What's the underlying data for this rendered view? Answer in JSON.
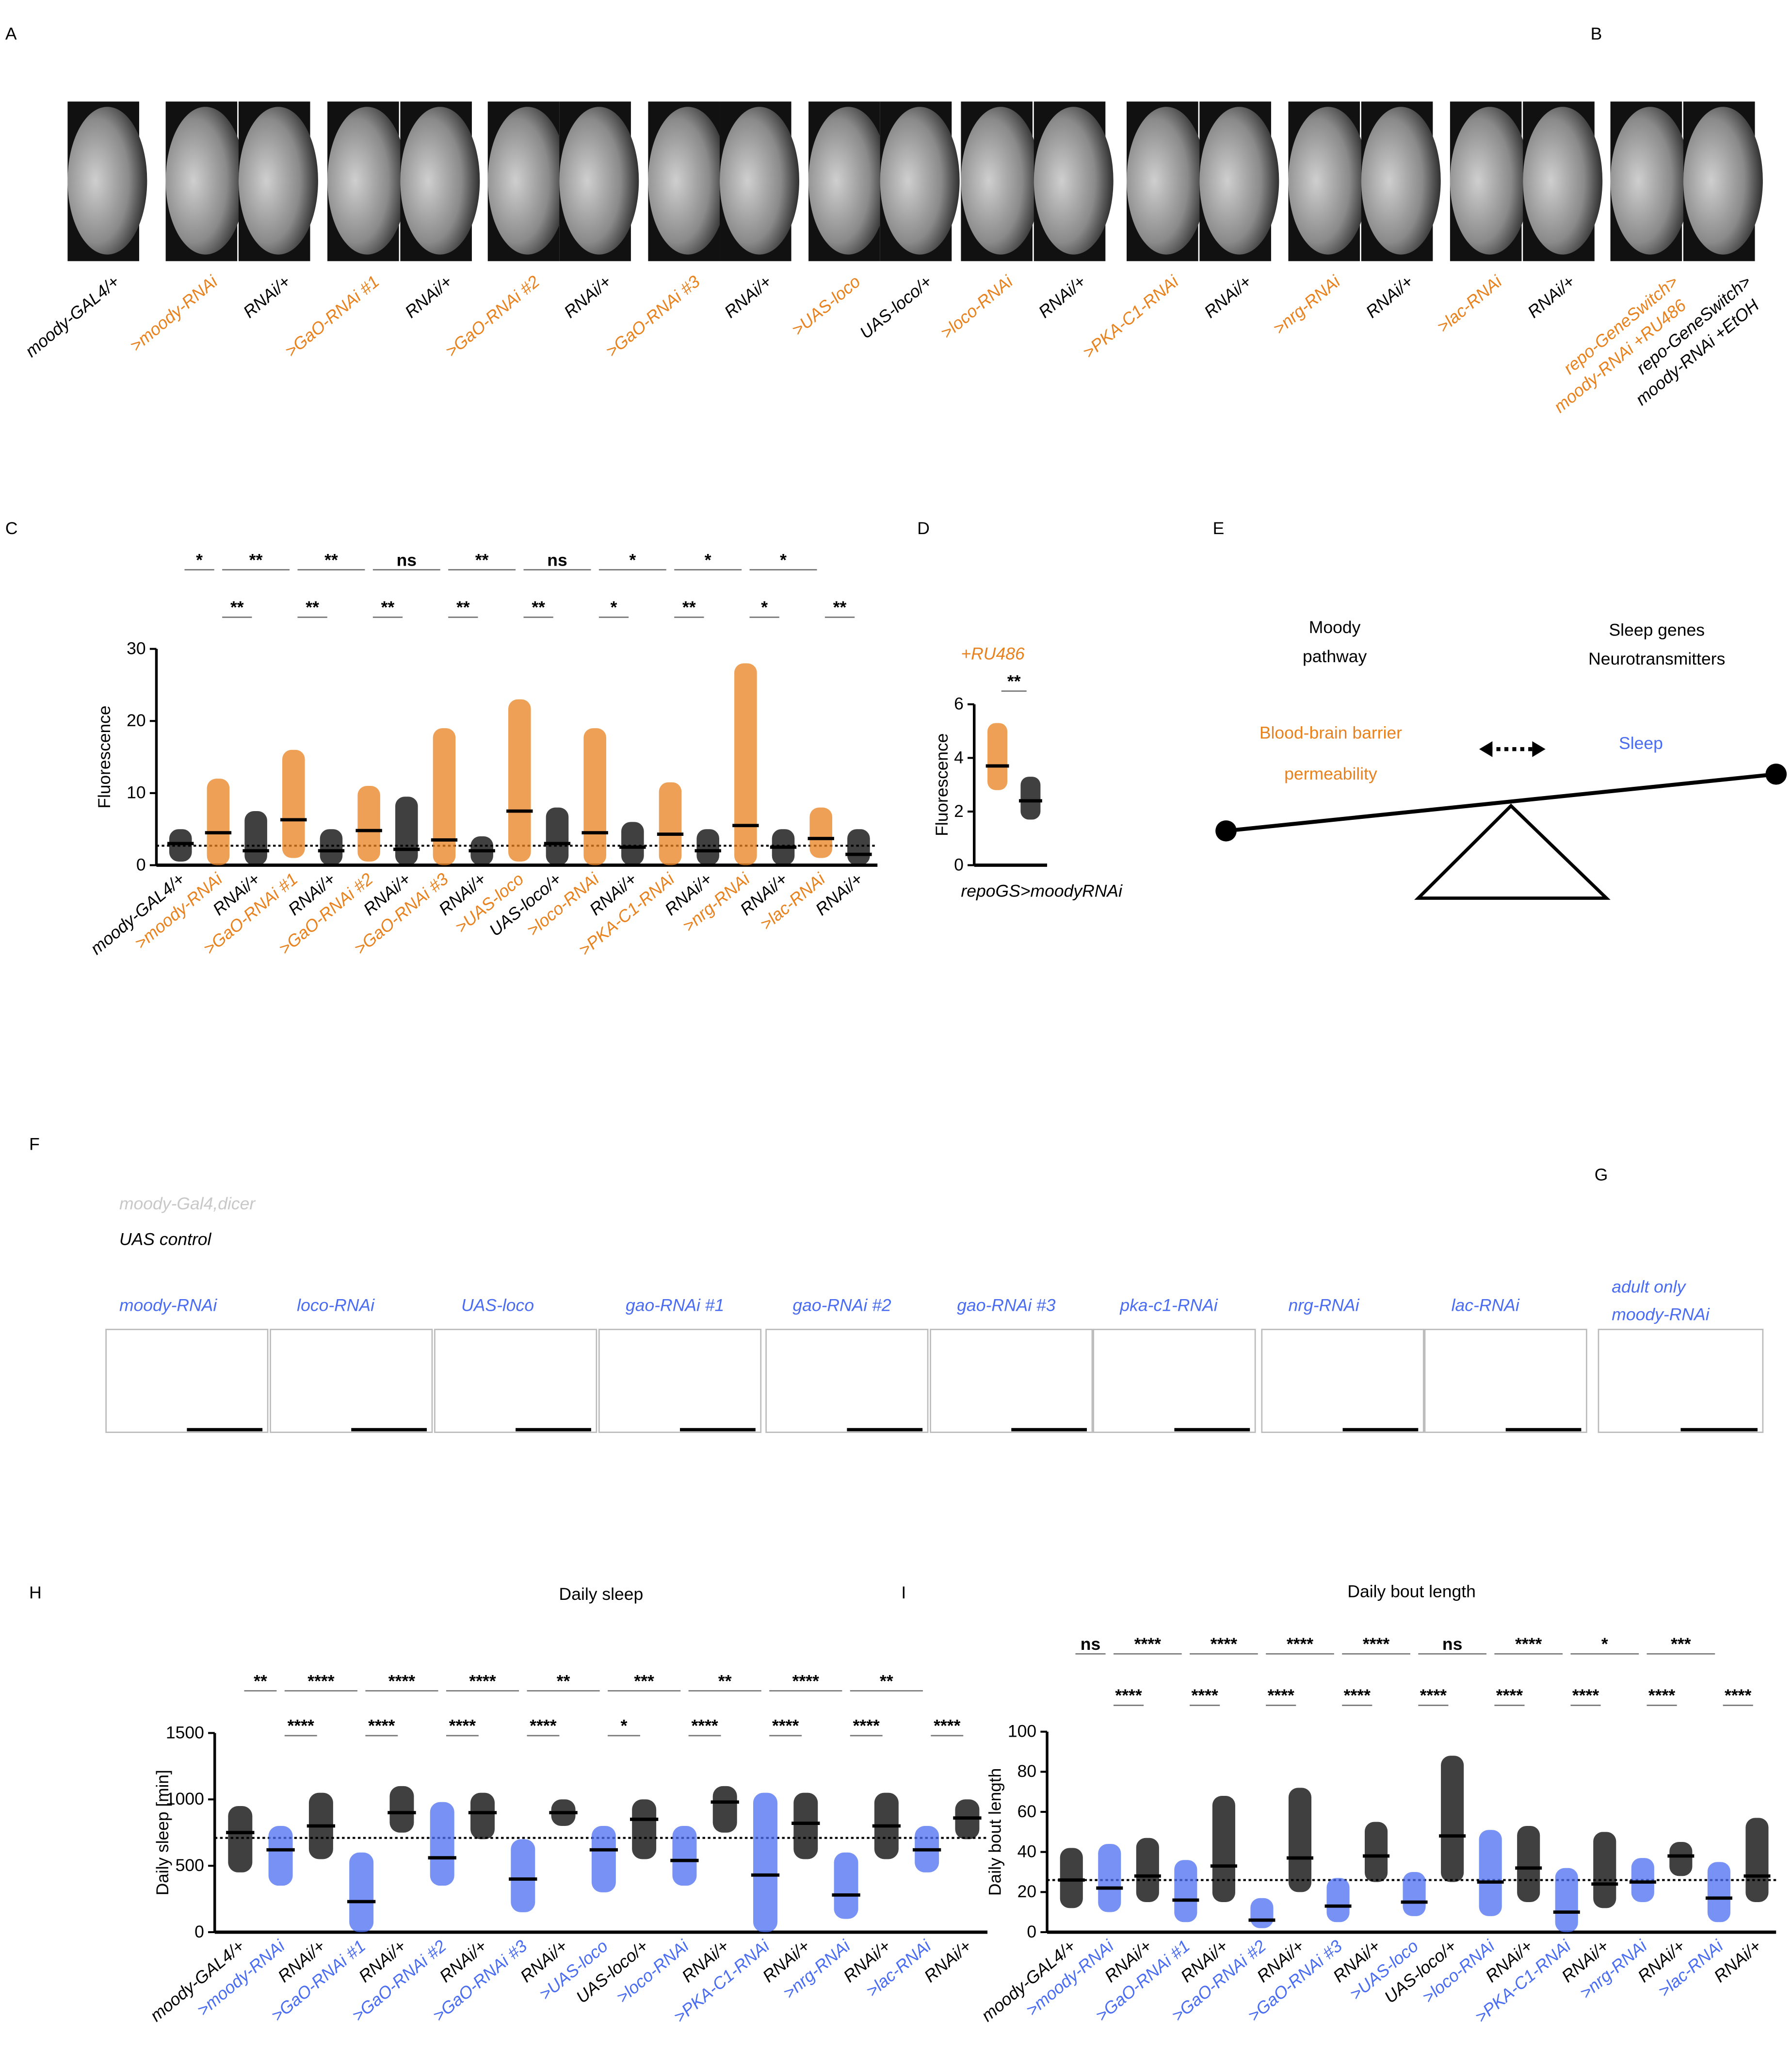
{
  "panel_labels": [
    "A",
    "B",
    "C",
    "D",
    "E",
    "F",
    "G",
    "H",
    "I"
  ],
  "panel_a": {
    "labels": [
      "moody-GAL4/+",
      ">moody-RNAi",
      "RNAi/+",
      ">GaO-RNAi #1",
      "RNAi/+",
      ">GaO-RNAi #2",
      "RNAi/+",
      ">GaO-RNAi #3",
      "RNAi/+",
      ">UAS-loco",
      "UAS-loco/+",
      ">loco-RNAi",
      "RNAi/+",
      ">PKA-C1-RNAi",
      "RNAi/+",
      ">nrg-RNAi",
      "RNAi/+",
      ">lac-RNAi",
      "RNAi/+"
    ],
    "label_colors": [
      "#000000",
      "#e8821e",
      "#000000",
      "#e8821e",
      "#000000",
      "#e8821e",
      "#000000",
      "#e8821e",
      "#000000",
      "#e8821e",
      "#000000",
      "#e8821e",
      "#000000",
      "#e8821e",
      "#000000",
      "#e8821e",
      "#000000",
      "#e8821e",
      "#000000"
    ]
  },
  "panel_b": {
    "labels": [
      [
        "repo-GeneSwitch>",
        "moody-RNAi +RU486"
      ],
      [
        "repo-GeneSwitch>",
        "moody-RNAi +EtOH"
      ]
    ],
    "label_colors": [
      "#e8821e",
      "#000000"
    ]
  },
  "panel_e": {
    "left_top": [
      "Moody",
      "pathway"
    ],
    "right_top": [
      "Sleep genes",
      "Neurotransmitters"
    ],
    "left": [
      "Blood-brain barrier",
      "permeability"
    ],
    "right": "Sleep"
  },
  "panel_f": {
    "legend": [
      "moody-Gal4,dicer",
      "UAS control"
    ],
    "legend_colors": [
      "#c8c8c8",
      "#000000"
    ],
    "titles": [
      "moody-RNAi",
      "loco-RNAi",
      "UAS-loco",
      "gao-RNAi #1",
      "gao-RNAi #2",
      "gao-RNAi #3",
      "pka-c1-RNAi",
      "nrg-RNAi",
      "lac-RNAi"
    ]
  },
  "panel_g": {
    "title": [
      "adult only",
      "moody-RNAi"
    ]
  },
  "chart_data": [
    {
      "type": "dot",
      "ylabel": "Fluorescence",
      "categories": [
        "moody-GAL4/+",
        ">moody-RNAi",
        "RNAi/+",
        ">GaO-RNAi #1",
        "RNAi/+",
        ">GaO-RNAi #2",
        "RNAi/+",
        ">GaO-RNAi #3",
        "RNAi/+",
        ">UAS-loco",
        "UAS-loco/+",
        ">loco-RNAi",
        "RNAi/+",
        ">PKA-C1-RNAi",
        "RNAi/+",
        ">nrg-RNAi",
        "RNAi/+",
        ">lac-RNAi",
        "RNAi/+"
      ],
      "colors": [
        "#000000",
        "#e8821e",
        "#000000",
        "#e8821e",
        "#000000",
        "#e8821e",
        "#000000",
        "#e8821e",
        "#000000",
        "#e8821e",
        "#000000",
        "#e8821e",
        "#000000",
        "#e8821e",
        "#000000",
        "#e8821e",
        "#000000",
        "#e8821e",
        "#000000"
      ],
      "values": [
        3,
        4.5,
        2,
        6.3,
        2,
        4.8,
        2.2,
        3.5,
        2,
        7.5,
        3,
        4.5,
        2.5,
        4.3,
        2,
        5.5,
        2.5,
        3.7,
        1.5
      ],
      "min": [
        0.5,
        0,
        0,
        1,
        0,
        0.5,
        0,
        0,
        0,
        0.5,
        0,
        0,
        0,
        0,
        0,
        0,
        0,
        1,
        0
      ],
      "max": [
        5,
        12,
        7.5,
        16,
        5,
        11,
        9.5,
        19,
        4,
        23,
        8,
        19,
        6,
        11.5,
        5,
        28,
        5,
        8,
        5
      ],
      "reference": 2.7,
      "ylim": [
        0,
        30
      ],
      "yticks": [
        0,
        10,
        20,
        30
      ],
      "top_marks": [
        "*",
        "**",
        "**",
        "ns",
        "**",
        "ns",
        "*",
        "*",
        "*"
      ],
      "bottom_marks": [
        "**",
        "**",
        "**",
        "**",
        "**",
        "*",
        "**",
        "*",
        "**"
      ]
    },
    {
      "type": "dot",
      "ylabel": "Fluorescence",
      "xlabel": "repoGS>moodyRNAi",
      "annotation": "+RU486",
      "categories": [
        null,
        null
      ],
      "colors": [
        "#e8821e",
        "#000000"
      ],
      "values": [
        3.7,
        2.4
      ],
      "min": [
        2.8,
        1.7
      ],
      "max": [
        5.3,
        3.3
      ],
      "ylim": [
        0,
        6
      ],
      "yticks": [
        0,
        2,
        4,
        6
      ],
      "top_marks": [
        "**"
      ]
    },
    {
      "type": "dot",
      "title": "Daily sleep",
      "ylabel": "Daily sleep [min]",
      "categories": [
        "moody-GAL4/+",
        ">moody-RNAi",
        "RNAi/+",
        ">GaO-RNAi #1",
        "RNAi/+",
        ">GaO-RNAi #2",
        "RNAi/+",
        ">GaO-RNAi #3",
        "RNAi/+",
        ">UAS-loco",
        "UAS-loco/+",
        ">loco-RNAi",
        "RNAi/+",
        ">PKA-C1-RNAi",
        "RNAi/+",
        ">nrg-RNAi",
        "RNAi/+",
        ">lac-RNAi",
        "RNAi/+"
      ],
      "colors": [
        "#000000",
        "#4a6cf0",
        "#000000",
        "#4a6cf0",
        "#000000",
        "#4a6cf0",
        "#000000",
        "#4a6cf0",
        "#000000",
        "#4a6cf0",
        "#000000",
        "#4a6cf0",
        "#000000",
        "#4a6cf0",
        "#000000",
        "#4a6cf0",
        "#000000",
        "#4a6cf0",
        "#000000"
      ],
      "values": [
        750,
        620,
        800,
        230,
        900,
        560,
        900,
        400,
        900,
        620,
        850,
        540,
        980,
        430,
        820,
        280,
        800,
        620,
        860
      ],
      "min": [
        450,
        350,
        550,
        0,
        750,
        350,
        700,
        150,
        800,
        300,
        550,
        350,
        750,
        0,
        550,
        100,
        550,
        450,
        700
      ],
      "max": [
        950,
        800,
        1050,
        600,
        1100,
        980,
        1050,
        700,
        1000,
        800,
        1000,
        800,
        1100,
        1050,
        1050,
        600,
        1050,
        800,
        1000
      ],
      "reference": 710,
      "ylim": [
        0,
        1500
      ],
      "yticks": [
        0,
        500,
        1000,
        1500
      ],
      "top_marks": [
        "**",
        "****",
        "****",
        "****",
        "**",
        "***",
        "**",
        "****",
        "**"
      ],
      "bottom_marks": [
        "****",
        "****",
        "****",
        "****",
        "*",
        "****",
        "****",
        "****",
        "****"
      ]
    },
    {
      "type": "dot",
      "title": "Daily bout length",
      "ylabel": "Daily bout length",
      "categories": [
        "moody-GAL4/+",
        ">moody-RNAi",
        "RNAi/+",
        ">GaO-RNAi #1",
        "RNAi/+",
        ">GaO-RNAi #2",
        "RNAi/+",
        ">GaO-RNAi #3",
        "RNAi/+",
        ">UAS-loco",
        "UAS-loco/+",
        ">loco-RNAi",
        "RNAi/+",
        ">PKA-C1-RNAi",
        "RNAi/+",
        ">nrg-RNAi",
        "RNAi/+",
        ">lac-RNAi",
        "RNAi/+"
      ],
      "colors": [
        "#000000",
        "#4a6cf0",
        "#000000",
        "#4a6cf0",
        "#000000",
        "#4a6cf0",
        "#000000",
        "#4a6cf0",
        "#000000",
        "#4a6cf0",
        "#000000",
        "#4a6cf0",
        "#000000",
        "#4a6cf0",
        "#000000",
        "#4a6cf0",
        "#000000",
        "#4a6cf0",
        "#000000"
      ],
      "values": [
        26,
        22,
        28,
        16,
        33,
        6,
        37,
        13,
        38,
        15,
        48,
        25,
        32,
        10,
        24,
        25,
        38,
        17,
        28
      ],
      "min": [
        12,
        10,
        15,
        5,
        15,
        2,
        20,
        5,
        25,
        8,
        25,
        8,
        15,
        0,
        12,
        15,
        28,
        5,
        15
      ],
      "max": [
        42,
        44,
        47,
        36,
        68,
        17,
        72,
        27,
        55,
        30,
        88,
        51,
        53,
        32,
        50,
        37,
        45,
        35,
        57
      ],
      "reference": 26,
      "ylim": [
        0,
        100
      ],
      "yticks": [
        0,
        20,
        40,
        60,
        80,
        100
      ],
      "top_marks": [
        "ns",
        "****",
        "****",
        "****",
        "****",
        "ns",
        "****",
        "*",
        "***"
      ],
      "bottom_marks": [
        "****",
        "****",
        "****",
        "****",
        "****",
        "****",
        "****",
        "****",
        "****"
      ]
    }
  ]
}
